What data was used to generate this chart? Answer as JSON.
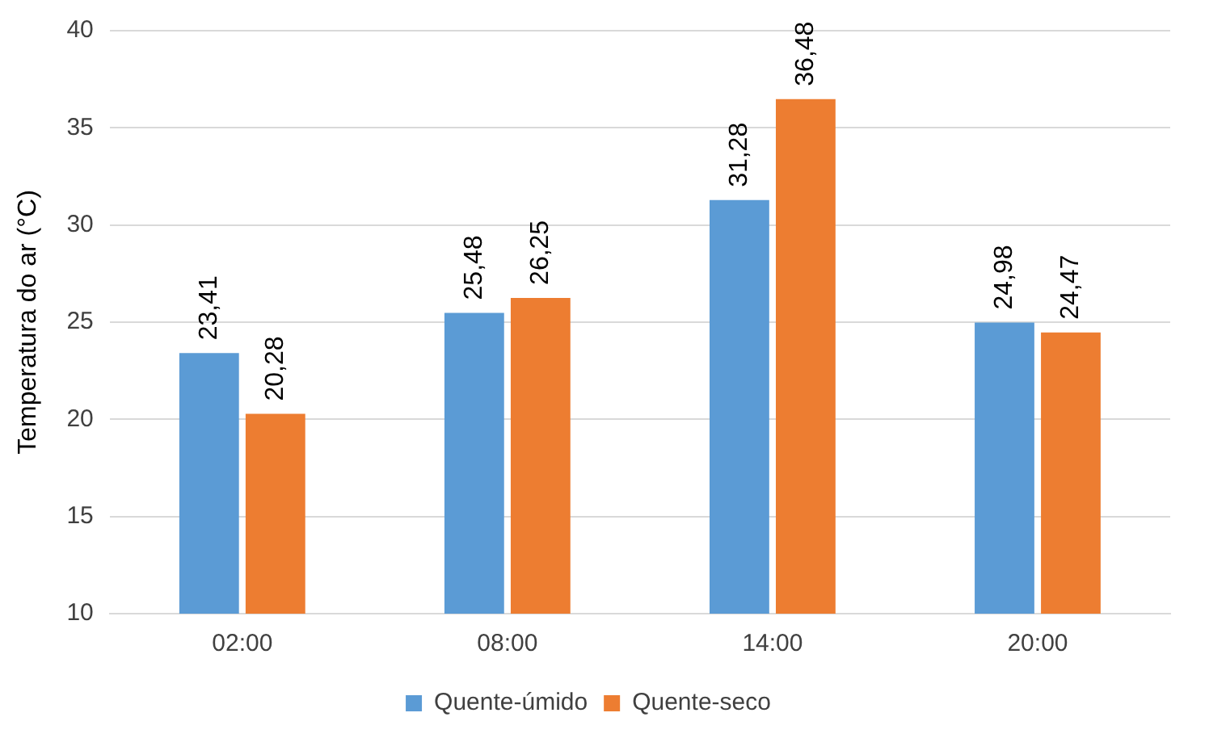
{
  "chart_data": {
    "type": "bar",
    "ylabel": "Temperatura do ar (°C)",
    "categories": [
      "02:00",
      "08:00",
      "14:00",
      "20:00"
    ],
    "series": [
      {
        "name": "Quente-úmido",
        "color": "#5b9bd5",
        "values": [
          23.41,
          25.48,
          31.28,
          24.98
        ],
        "value_labels": [
          "23,41",
          "25,48",
          "31,28",
          "24,98"
        ]
      },
      {
        "name": "Quente-seco",
        "color": "#ed7d31",
        "values": [
          20.28,
          26.25,
          36.48,
          24.47
        ],
        "value_labels": [
          "20,28",
          "26,25",
          "36,48",
          "24,47"
        ]
      }
    ],
    "ylim": [
      10,
      40
    ],
    "yticks": [
      10,
      15,
      20,
      25,
      30,
      35,
      40
    ],
    "grid": "y",
    "legend": "bottom"
  }
}
